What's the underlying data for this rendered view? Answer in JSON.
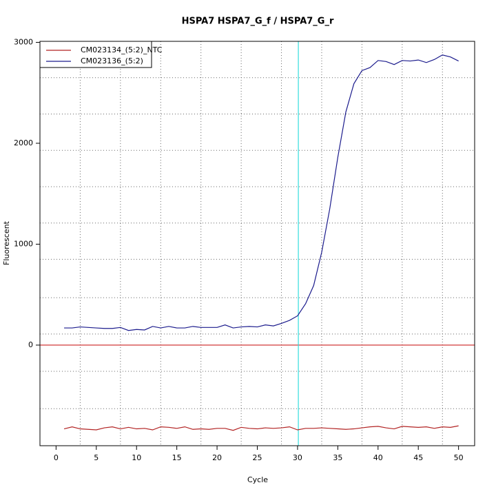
{
  "chart_data": {
    "type": "line",
    "title": "HSPA7  HSPA7_G_f / HSPA7_G_r",
    "x_label": "Cycle",
    "y_label": "Fluorescent",
    "x": [
      1,
      2,
      3,
      4,
      5,
      6,
      7,
      8,
      9,
      10,
      11,
      12,
      13,
      14,
      15,
      16,
      17,
      18,
      19,
      20,
      21,
      22,
      23,
      24,
      25,
      26,
      27,
      28,
      29,
      30,
      31,
      32,
      33,
      34,
      35,
      36,
      37,
      38,
      39,
      40,
      41,
      42,
      43,
      44,
      45,
      46,
      47,
      48,
      49,
      50
    ],
    "series": [
      {
        "name": "CM023134_(5:2)_NTC",
        "color": "#b22222",
        "values": [
          -830,
          -810,
          -830,
          -835,
          -840,
          -820,
          -810,
          -830,
          -815,
          -830,
          -825,
          -840,
          -810,
          -815,
          -825,
          -810,
          -835,
          -830,
          -835,
          -825,
          -825,
          -845,
          -815,
          -825,
          -830,
          -820,
          -825,
          -820,
          -810,
          -840,
          -825,
          -825,
          -820,
          -825,
          -830,
          -835,
          -830,
          -820,
          -810,
          -805,
          -820,
          -830,
          -805,
          -810,
          -815,
          -810,
          -825,
          -810,
          -815,
          -800
        ]
      },
      {
        "name": "CM023136_(5:2)",
        "color": "#1a1a8c",
        "values": [
          170,
          170,
          180,
          175,
          170,
          165,
          165,
          175,
          145,
          155,
          150,
          185,
          170,
          185,
          170,
          170,
          185,
          175,
          175,
          175,
          200,
          170,
          180,
          185,
          180,
          200,
          190,
          215,
          245,
          290,
          410,
          590,
          920,
          1350,
          1860,
          2310,
          2590,
          2720,
          2750,
          2820,
          2810,
          2780,
          2820,
          2815,
          2825,
          2800,
          2830,
          2875,
          2855,
          2815
        ]
      }
    ],
    "xlim": [
      -2,
      52
    ],
    "ylim": [
      -997,
      3010
    ],
    "xticks": [
      0,
      5,
      10,
      15,
      20,
      25,
      30,
      35,
      40,
      45,
      50
    ],
    "yticks": [
      0,
      1000,
      2000,
      3000
    ],
    "x_grid": [
      3,
      8,
      13,
      18,
      23,
      28,
      33,
      38,
      43,
      48
    ],
    "y_grid": [
      2650,
      2290,
      1930,
      1570,
      1210,
      850,
      470,
      110,
      -260,
      -630
    ],
    "hline": {
      "value": 0,
      "color": "#cc2222"
    },
    "vline": {
      "value": 30.1,
      "color": "#33dddd"
    },
    "legend": "top-left"
  }
}
